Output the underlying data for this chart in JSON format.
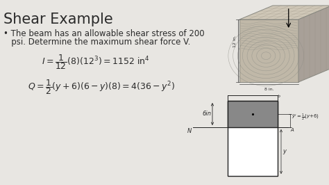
{
  "background_color": "#e8e6e2",
  "title": "Shear Example",
  "title_fontsize": 15,
  "bullet_text1": "• The beam has an allowable shear stress of 200",
  "bullet_text2": "   psi. Determine the maximum shear force V.",
  "bullet_fontsize": 8.5,
  "eq1_fontsize": 9,
  "eq2_fontsize": 9,
  "text_color": "#2a2a2a",
  "wood_color_front": "#c0b8a8",
  "wood_color_top": "#d0c8b8",
  "wood_color_right": "#a8a098",
  "wood_grain_color": "#909088",
  "cross_bg": "#ffffff",
  "cross_shade": "#888888",
  "cross_line": "#222222",
  "label_color": "#222222"
}
